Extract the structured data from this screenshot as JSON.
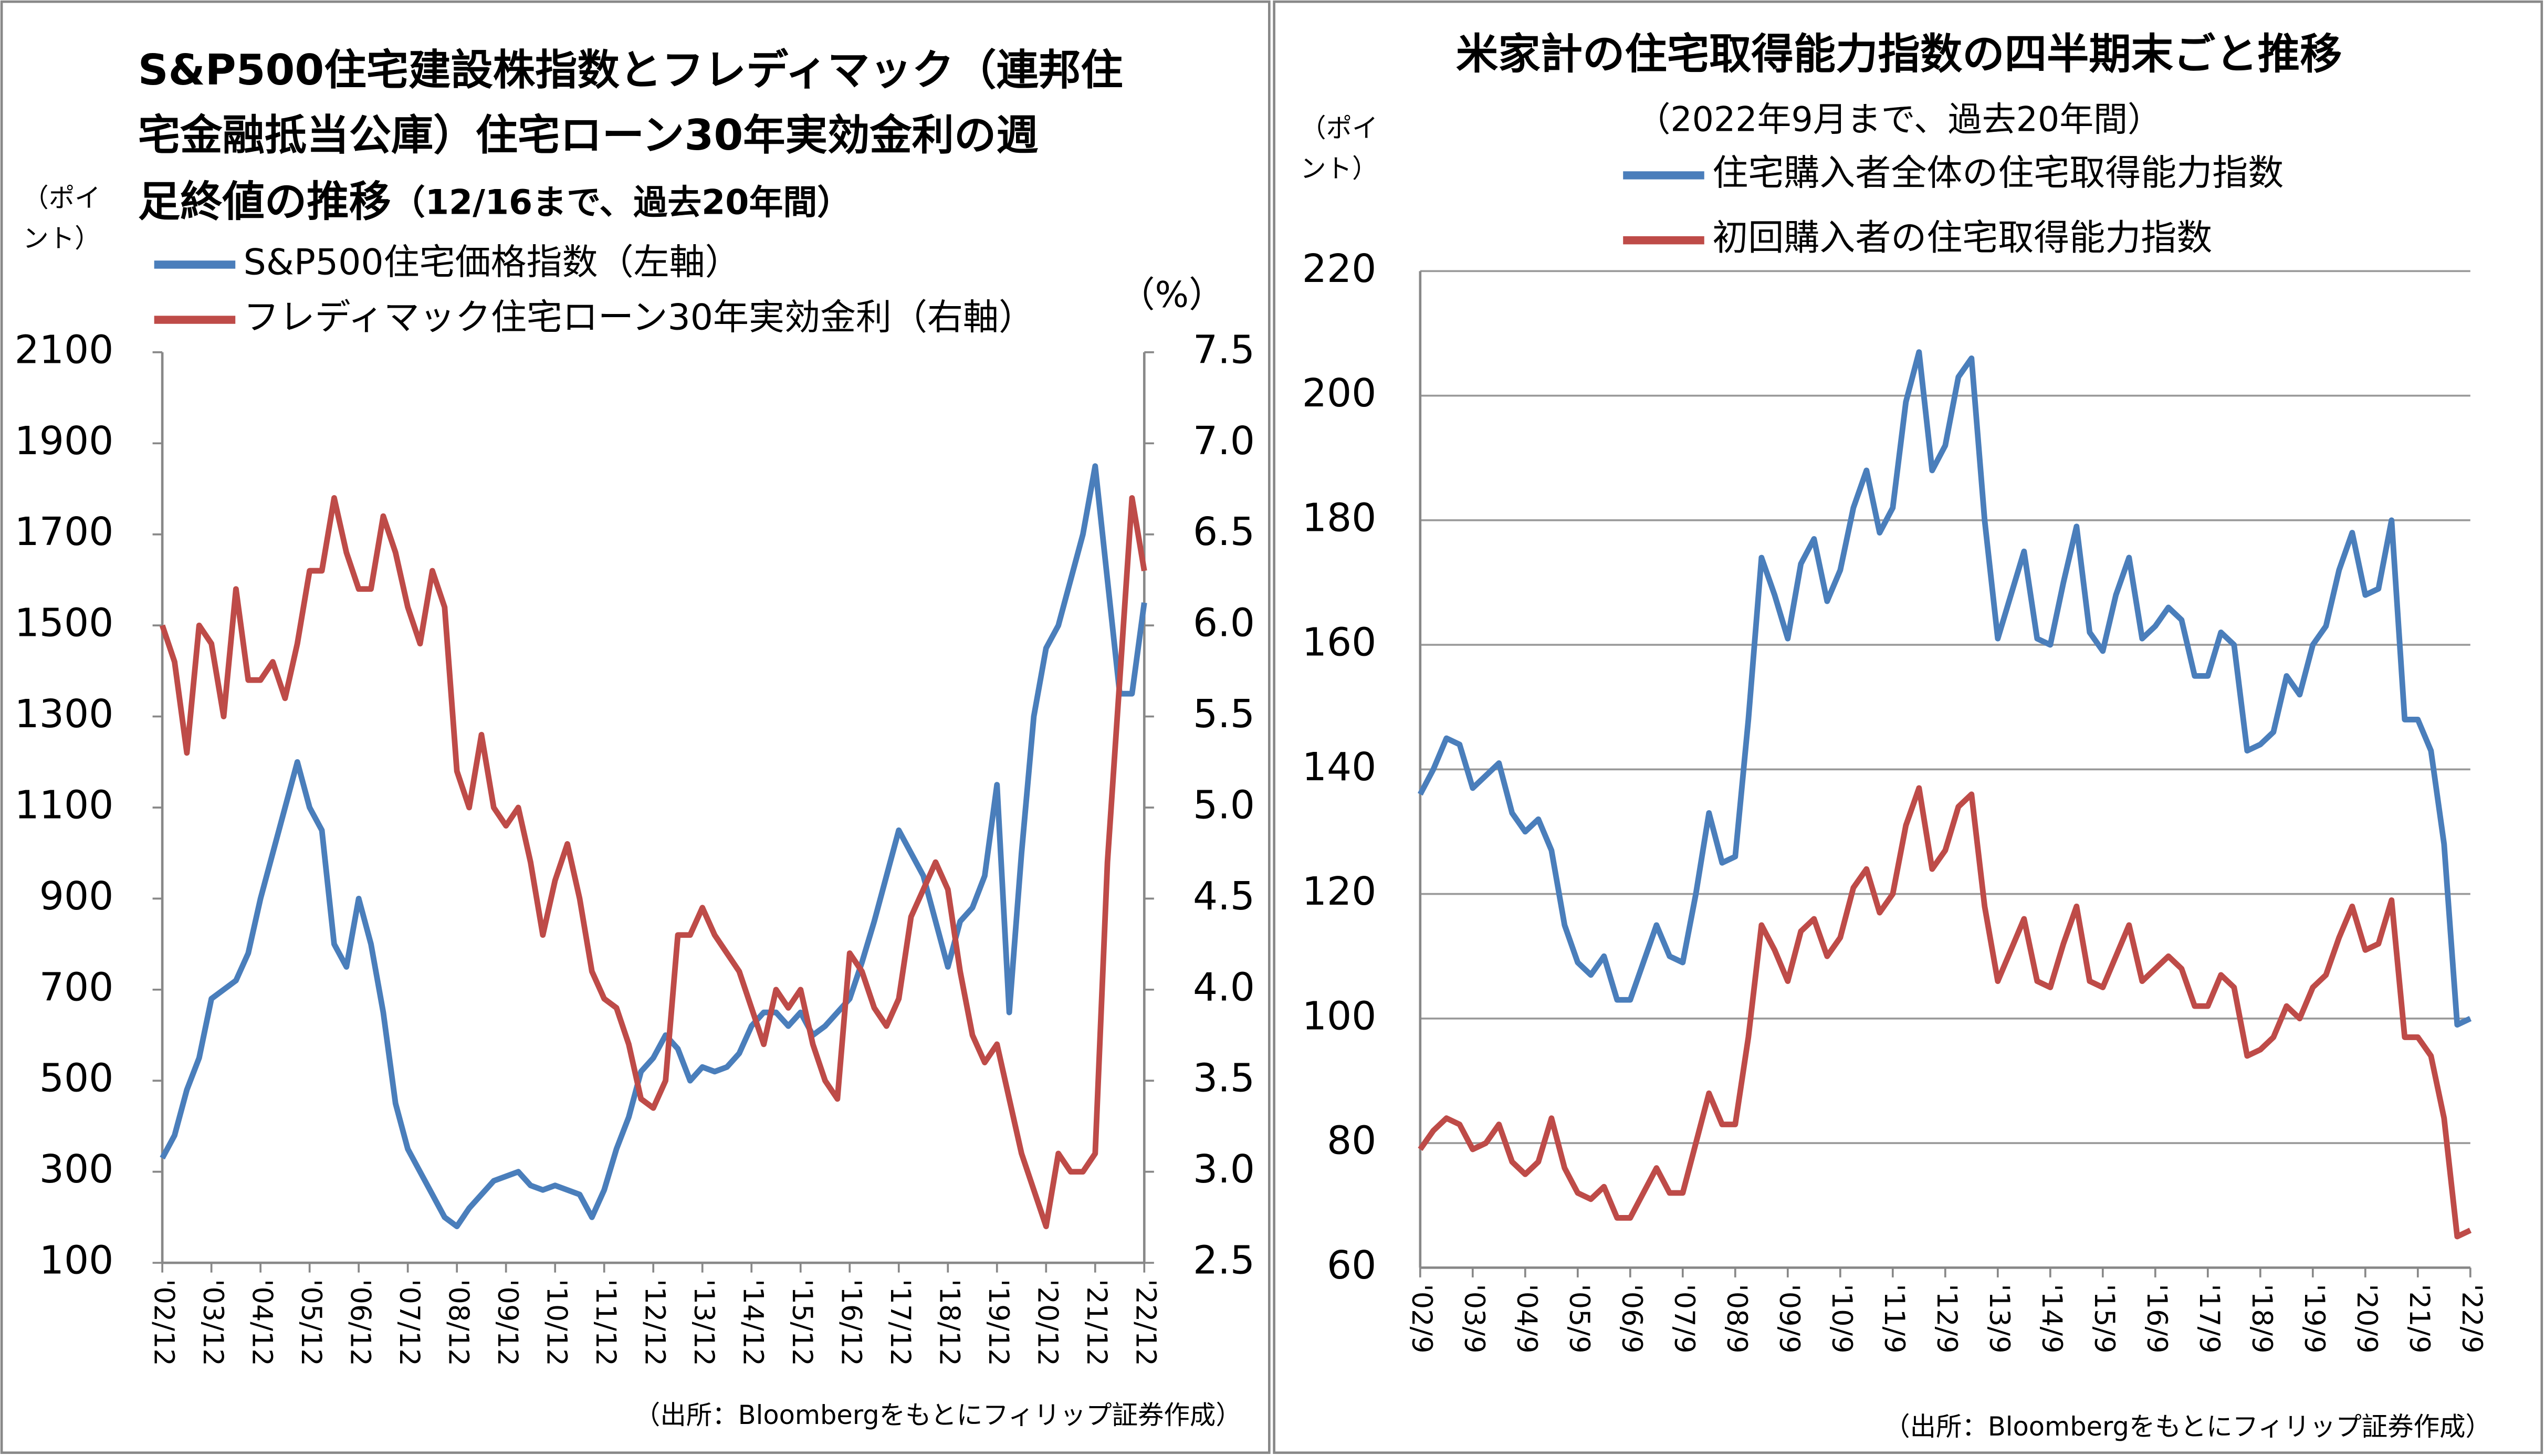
{
  "chart_data": [
    {
      "type": "line",
      "title": [
        "S&P500住宅建設株指数とフレディマック（連邦住",
        "宅金融抵当公庫）住宅ローン30年実効金利の週",
        "足終値の推移"
      ],
      "subtitle": "（12/16まで、過去20年間）",
      "y_label": [
        "（ポイ",
        "ント）"
      ],
      "y2_label": "（%）",
      "source": "（出所：Bloombergをもとにフィリップ証券作成）",
      "categories": [
        "'02/12",
        null,
        null,
        null,
        "'03/12",
        null,
        null,
        null,
        "'04/12",
        null,
        null,
        null,
        "'05/12",
        null,
        null,
        null,
        "'06/12",
        null,
        null,
        null,
        "'07/12",
        null,
        null,
        null,
        "'08/12",
        null,
        null,
        null,
        "'09/12",
        null,
        null,
        null,
        "'10/12",
        null,
        null,
        null,
        "'11/12",
        null,
        null,
        null,
        "'12/12",
        null,
        null,
        null,
        "'13/12",
        null,
        null,
        null,
        "'14/12",
        null,
        null,
        null,
        "'15/12",
        null,
        null,
        null,
        "'16/12",
        null,
        null,
        null,
        "'17/12",
        null,
        null,
        null,
        "'18/12",
        null,
        null,
        null,
        "'19/12",
        null,
        null,
        null,
        "'20/12",
        null,
        null,
        null,
        "'21/12",
        null,
        null,
        null,
        "'22/12"
      ],
      "series": [
        {
          "name": "S&P500住宅価格指数（左軸）",
          "color": "#4a7ebb",
          "values": [
            330,
            380,
            480,
            550,
            680,
            700,
            720,
            780,
            900,
            1000,
            1100,
            1200,
            1100,
            1050,
            800,
            750,
            900,
            800,
            650,
            450,
            350,
            300,
            250,
            200,
            180,
            220,
            250,
            280,
            290,
            300,
            270,
            260,
            270,
            260,
            250,
            200,
            260,
            350,
            420,
            520,
            550,
            600,
            570,
            500,
            530,
            520,
            530,
            560,
            620,
            650,
            650,
            620,
            650,
            600,
            620,
            650,
            680,
            760,
            850,
            950,
            1050,
            1000,
            950,
            850,
            750,
            850,
            880,
            950,
            1150,
            650,
            1000,
            1300,
            1450,
            1500,
            1600,
            1700,
            1850,
            1600,
            1350,
            1350,
            1550
          ]
        },
        {
          "name": "フレディマック住宅ローン30年実効金利（右軸）",
          "color": "#be4b48",
          "axis": "y2",
          "values": [
            6.0,
            5.8,
            5.3,
            6.0,
            5.9,
            5.5,
            6.2,
            5.7,
            5.7,
            5.8,
            5.6,
            5.9,
            6.3,
            6.3,
            6.7,
            6.4,
            6.2,
            6.2,
            6.6,
            6.4,
            6.1,
            5.9,
            6.3,
            6.1,
            5.2,
            5.0,
            5.4,
            5.0,
            4.9,
            5.0,
            4.7,
            4.3,
            4.6,
            4.8,
            4.5,
            4.1,
            3.95,
            3.9,
            3.7,
            3.4,
            3.35,
            3.5,
            4.3,
            4.3,
            4.45,
            4.3,
            4.2,
            4.1,
            3.9,
            3.7,
            4.0,
            3.9,
            4.0,
            3.7,
            3.5,
            3.4,
            4.2,
            4.1,
            3.9,
            3.8,
            3.95,
            4.4,
            4.55,
            4.7,
            4.55,
            4.1,
            3.75,
            3.6,
            3.7,
            3.4,
            3.1,
            2.9,
            2.7,
            3.1,
            3.0,
            3.0,
            3.1,
            4.7,
            5.7,
            6.7,
            6.3
          ]
        }
      ],
      "ylim": [
        100,
        2100
      ],
      "yticks": [
        100,
        300,
        500,
        700,
        900,
        1100,
        1300,
        1500,
        1700,
        1900,
        2100
      ],
      "y2lim": [
        2.5,
        7.5
      ],
      "y2ticks": [
        2.5,
        {
          "value": 3,
          "label": "3.0"
        },
        3.5,
        {
          "value": 4,
          "label": "4.0"
        },
        4.5,
        {
          "value": 5,
          "label": "5.0"
        },
        5.5,
        {
          "value": 6,
          "label": "6.0"
        },
        6.5,
        {
          "value": 7,
          "label": "7.0"
        },
        7.5
      ],
      "grid": false
    },
    {
      "type": "line",
      "title": [
        "米家計の住宅取得能力指数の四半期末ごと推移"
      ],
      "subtitle": "（2022年9月まで、過去20年間）",
      "y_label": [
        "（ポイ",
        "ント）"
      ],
      "source": "（出所：Bloombergをもとにフィリップ証券作成）",
      "categories": [
        "'02/9",
        null,
        null,
        null,
        "'03/9",
        null,
        null,
        null,
        "'04/9",
        null,
        null,
        null,
        "'05/9",
        null,
        null,
        null,
        "'06/9",
        null,
        null,
        null,
        "'07/9",
        null,
        null,
        null,
        "'08/9",
        null,
        null,
        null,
        "'09/9",
        null,
        null,
        null,
        "'10/9",
        null,
        null,
        null,
        "'11/9",
        null,
        null,
        null,
        "'12/9",
        null,
        null,
        null,
        "'13/9",
        null,
        null,
        null,
        "'14/9",
        null,
        null,
        null,
        "'15/9",
        null,
        null,
        null,
        "'16/9",
        null,
        null,
        null,
        "'17/9",
        null,
        null,
        null,
        "'18/9",
        null,
        null,
        null,
        "'19/9",
        null,
        null,
        null,
        "'20/9",
        null,
        null,
        null,
        "'21/9",
        null,
        null,
        null,
        "'22/9"
      ],
      "series": [
        {
          "name": "住宅購入者全体の住宅取得能力指数",
          "color": "#4a7ebb",
          "values": [
            136,
            140,
            145,
            144,
            137,
            139,
            141,
            133,
            130,
            132,
            127,
            115,
            109,
            107,
            110,
            103,
            103,
            109,
            115,
            110,
            109,
            120,
            133,
            125,
            126,
            148,
            174,
            168,
            161,
            173,
            177,
            167,
            172,
            182,
            188,
            178,
            182,
            199,
            207,
            188,
            192,
            203,
            206,
            180,
            161,
            168,
            175,
            161,
            160,
            170,
            179,
            162,
            159,
            168,
            174,
            161,
            163,
            166,
            164,
            155,
            155,
            162,
            160,
            143,
            144,
            146,
            155,
            152,
            160,
            163,
            172,
            178,
            168,
            169,
            180,
            148,
            148,
            143,
            128,
            99,
            100
          ]
        },
        {
          "name": "初回購入者の住宅取得能力指数",
          "color": "#be4b48",
          "values": [
            79,
            82,
            84,
            83,
            79,
            80,
            83,
            77,
            75,
            77,
            84,
            76,
            72,
            71,
            73,
            68,
            68,
            72,
            76,
            72,
            72,
            80,
            88,
            83,
            83,
            97,
            115,
            111,
            106,
            114,
            116,
            110,
            113,
            121,
            124,
            117,
            120,
            131,
            137,
            124,
            127,
            134,
            136,
            118,
            106,
            111,
            116,
            106,
            105,
            112,
            118,
            106,
            105,
            110,
            115,
            106,
            108,
            110,
            108,
            102,
            102,
            107,
            105,
            94,
            95,
            97,
            102,
            100,
            105,
            107,
            113,
            118,
            111,
            112,
            119,
            97,
            97,
            94,
            84,
            65,
            66
          ]
        }
      ],
      "ylim": [
        60,
        220
      ],
      "yticks": [
        60,
        80,
        100,
        120,
        140,
        160,
        180,
        200,
        220
      ],
      "grid": true
    }
  ]
}
